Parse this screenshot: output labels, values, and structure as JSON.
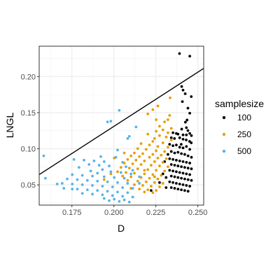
{
  "chart_data": {
    "type": "scatter",
    "xlabel": "D",
    "ylabel": "LNGL",
    "xlim": [
      0.1555,
      0.2535
    ],
    "ylim": [
      0.022,
      0.242
    ],
    "xticks": [
      0.175,
      0.2,
      0.225,
      0.25
    ],
    "xtick_labels": [
      "0.175",
      "0.200",
      "0.225",
      "0.250"
    ],
    "yticks": [
      0.05,
      0.1,
      0.15,
      0.2
    ],
    "ytick_labels": [
      "0.05",
      "0.10",
      "0.15",
      "0.20"
    ],
    "grid": true,
    "legend": {
      "title": "samplesize",
      "position": "right",
      "entries": [
        "100",
        "250",
        "500"
      ]
    },
    "reference_line": {
      "intercept": -0.169,
      "slope": 1.5
    },
    "series": [
      {
        "name": "100",
        "color": "#000000",
        "points": [
          [
            0.2452,
            0.2282
          ],
          [
            0.2391,
            0.2318
          ],
          [
            0.2404,
            0.1862
          ],
          [
            0.2412,
            0.1812
          ],
          [
            0.2425,
            0.1762
          ],
          [
            0.2461,
            0.1722
          ],
          [
            0.2408,
            0.1653
          ],
          [
            0.2441,
            0.1562
          ],
          [
            0.2452,
            0.1492
          ],
          [
            0.2436,
            0.1398
          ],
          [
            0.2426,
            0.1368
          ],
          [
            0.2432,
            0.1292
          ],
          [
            0.2404,
            0.1272
          ],
          [
            0.2352,
            0.1222
          ],
          [
            0.2372,
            0.1212
          ],
          [
            0.2382,
            0.1202
          ],
          [
            0.2412,
            0.1192
          ],
          [
            0.2432,
            0.1192
          ],
          [
            0.2452,
            0.1212
          ],
          [
            0.2462,
            0.1182
          ],
          [
            0.2342,
            0.1152
          ],
          [
            0.2361,
            0.1142
          ],
          [
            0.2392,
            0.1152
          ],
          [
            0.2412,
            0.1132
          ],
          [
            0.2431,
            0.1122
          ],
          [
            0.2451,
            0.1102
          ],
          [
            0.2461,
            0.1082
          ],
          [
            0.2332,
            0.1062
          ],
          [
            0.2352,
            0.1042
          ],
          [
            0.2372,
            0.1052
          ],
          [
            0.2392,
            0.1022
          ],
          [
            0.2412,
            0.1012
          ],
          [
            0.2432,
            0.1032
          ],
          [
            0.2452,
            0.0992
          ],
          [
            0.2342,
            0.0962
          ],
          [
            0.2362,
            0.0942
          ],
          [
            0.2382,
            0.0952
          ],
          [
            0.2402,
            0.0932
          ],
          [
            0.2422,
            0.0922
          ],
          [
            0.2442,
            0.0902
          ],
          [
            0.2462,
            0.0882
          ],
          [
            0.2332,
            0.0862
          ],
          [
            0.2352,
            0.0852
          ],
          [
            0.2372,
            0.0842
          ],
          [
            0.2392,
            0.0832
          ],
          [
            0.2412,
            0.0822
          ],
          [
            0.2432,
            0.0812
          ],
          [
            0.2452,
            0.0802
          ],
          [
            0.2342,
            0.0782
          ],
          [
            0.2362,
            0.0772
          ],
          [
            0.2382,
            0.0762
          ],
          [
            0.2402,
            0.0752
          ],
          [
            0.2422,
            0.0742
          ],
          [
            0.2442,
            0.0732
          ],
          [
            0.2462,
            0.0722
          ],
          [
            0.2332,
            0.0702
          ],
          [
            0.2352,
            0.0692
          ],
          [
            0.2372,
            0.0682
          ],
          [
            0.2392,
            0.0672
          ],
          [
            0.2412,
            0.0662
          ],
          [
            0.2432,
            0.0652
          ],
          [
            0.2452,
            0.0642
          ],
          [
            0.2342,
            0.0622
          ],
          [
            0.2362,
            0.0612
          ],
          [
            0.2382,
            0.0602
          ],
          [
            0.2402,
            0.0592
          ],
          [
            0.2422,
            0.0582
          ],
          [
            0.2442,
            0.0572
          ],
          [
            0.2462,
            0.0562
          ],
          [
            0.2332,
            0.0542
          ],
          [
            0.2352,
            0.0532
          ],
          [
            0.2372,
            0.0522
          ],
          [
            0.2392,
            0.0512
          ],
          [
            0.2412,
            0.0502
          ],
          [
            0.2432,
            0.0492
          ],
          [
            0.2452,
            0.0482
          ],
          [
            0.2342,
            0.0462
          ],
          [
            0.2362,
            0.0452
          ],
          [
            0.2382,
            0.0442
          ],
          [
            0.2402,
            0.0432
          ],
          [
            0.2422,
            0.0422
          ],
          [
            0.2442,
            0.0412
          ],
          [
            0.2222,
            0.0422
          ],
          [
            0.2272,
            0.0532
          ],
          [
            0.2292,
            0.0652
          ],
          [
            0.2311,
            0.0602
          ],
          [
            0.2322,
            0.0922
          ],
          [
            0.2302,
            0.0822
          ],
          [
            0.2401,
            0.1062
          ],
          [
            0.2441,
            0.1252
          ],
          [
            0.2311,
            0.0462
          ]
        ]
      },
      {
        "name": "250",
        "color": "#E69F00",
        "points": [
          [
            0.2335,
            0.1705
          ],
          [
            0.2262,
            0.1592
          ],
          [
            0.2232,
            0.1542
          ],
          [
            0.2202,
            0.1482
          ],
          [
            0.2252,
            0.1402
          ],
          [
            0.2332,
            0.1462
          ],
          [
            0.2322,
            0.1402
          ],
          [
            0.2302,
            0.1372
          ],
          [
            0.2272,
            0.1312
          ],
          [
            0.2342,
            0.1282
          ],
          [
            0.2292,
            0.1262
          ],
          [
            0.2252,
            0.1242
          ],
          [
            0.2322,
            0.1222
          ],
          [
            0.2202,
            0.1202
          ],
          [
            0.2272,
            0.1182
          ],
          [
            0.2312,
            0.1162
          ],
          [
            0.2242,
            0.1142
          ],
          [
            0.2342,
            0.1122
          ],
          [
            0.2232,
            0.1102
          ],
          [
            0.2292,
            0.1082
          ],
          [
            0.2162,
            0.1072
          ],
          [
            0.2212,
            0.1052
          ],
          [
            0.2262,
            0.1032
          ],
          [
            0.2322,
            0.1022
          ],
          [
            0.2142,
            0.1002
          ],
          [
            0.2192,
            0.0992
          ],
          [
            0.2252,
            0.0972
          ],
          [
            0.2302,
            0.0962
          ],
          [
            0.2122,
            0.0942
          ],
          [
            0.2172,
            0.0932
          ],
          [
            0.2232,
            0.0922
          ],
          [
            0.2282,
            0.0912
          ],
          [
            0.2102,
            0.0902
          ],
          [
            0.2152,
            0.0892
          ],
          [
            0.2212,
            0.0882
          ],
          [
            0.2262,
            0.0872
          ],
          [
            0.2312,
            0.0862
          ],
          [
            0.2082,
            0.0852
          ],
          [
            0.2132,
            0.0842
          ],
          [
            0.2182,
            0.0832
          ],
          [
            0.2242,
            0.0822
          ],
          [
            0.2292,
            0.0812
          ],
          [
            0.2062,
            0.0802
          ],
          [
            0.2112,
            0.0792
          ],
          [
            0.2162,
            0.0782
          ],
          [
            0.2222,
            0.0772
          ],
          [
            0.2272,
            0.0762
          ],
          [
            0.2322,
            0.0752
          ],
          [
            0.2042,
            0.0742
          ],
          [
            0.2092,
            0.0732
          ],
          [
            0.2142,
            0.0722
          ],
          [
            0.2202,
            0.0712
          ],
          [
            0.2252,
            0.0702
          ],
          [
            0.2302,
            0.0692
          ],
          [
            0.2022,
            0.0682
          ],
          [
            0.2072,
            0.0672
          ],
          [
            0.2122,
            0.0662
          ],
          [
            0.2182,
            0.0652
          ],
          [
            0.2232,
            0.0642
          ],
          [
            0.2282,
            0.0632
          ],
          [
            0.2052,
            0.0622
          ],
          [
            0.2102,
            0.0612
          ],
          [
            0.2162,
            0.0602
          ],
          [
            0.2212,
            0.0592
          ],
          [
            0.2262,
            0.0582
          ],
          [
            0.2082,
            0.0562
          ],
          [
            0.2142,
            0.0552
          ],
          [
            0.2192,
            0.0542
          ],
          [
            0.2242,
            0.0532
          ],
          [
            0.2292,
            0.0522
          ],
          [
            0.2122,
            0.0502
          ],
          [
            0.2172,
            0.0492
          ],
          [
            0.2222,
            0.0482
          ],
          [
            0.2272,
            0.0472
          ],
          [
            0.2102,
            0.0452
          ],
          [
            0.2152,
            0.0442
          ],
          [
            0.2202,
            0.0432
          ],
          [
            0.2252,
            0.0422
          ],
          [
            0.2182,
            0.0402
          ],
          [
            0.2232,
            0.0392
          ],
          [
            0.1942,
            0.0572
          ],
          [
            0.1982,
            0.0652
          ],
          [
            0.2002,
            0.0872
          ],
          [
            0.2062,
            0.0942
          ],
          [
            0.2182,
            0.0702
          ],
          [
            0.2242,
            0.0612
          ]
        ]
      },
      {
        "name": "500",
        "color": "#56B4E9",
        "points": [
          [
            0.2032,
            0.1532
          ],
          [
            0.1962,
            0.1372
          ],
          [
            0.1982,
            0.1382
          ],
          [
            0.2132,
            0.1302
          ],
          [
            0.2092,
            0.1172
          ],
          [
            0.2082,
            0.1142
          ],
          [
            0.2022,
            0.0982
          ],
          [
            0.1582,
            0.0902
          ],
          [
            0.1922,
            0.0892
          ],
          [
            0.2012,
            0.0882
          ],
          [
            0.1762,
            0.0852
          ],
          [
            0.1822,
            0.0842
          ],
          [
            0.1882,
            0.0832
          ],
          [
            0.1942,
            0.0822
          ],
          [
            0.2052,
            0.0812
          ],
          [
            0.1852,
            0.0782
          ],
          [
            0.1912,
            0.0772
          ],
          [
            0.1972,
            0.0762
          ],
          [
            0.2072,
            0.0752
          ],
          [
            0.1792,
            0.0742
          ],
          [
            0.1932,
            0.0712
          ],
          [
            0.2112,
            0.0702
          ],
          [
            0.1862,
            0.0692
          ],
          [
            0.1982,
            0.0682
          ],
          [
            0.2042,
            0.0672
          ],
          [
            0.1902,
            0.0662
          ],
          [
            0.2102,
            0.0652
          ],
          [
            0.1752,
            0.0642
          ],
          [
            0.1812,
            0.0632
          ],
          [
            0.1872,
            0.0622
          ],
          [
            0.1942,
            0.0612
          ],
          [
            0.2002,
            0.0602
          ],
          [
            0.2062,
            0.0592
          ],
          [
            0.1592,
            0.0592
          ],
          [
            0.1722,
            0.0582
          ],
          [
            0.1782,
            0.0572
          ],
          [
            0.1842,
            0.0562
          ],
          [
            0.1902,
            0.0552
          ],
          [
            0.1962,
            0.0542
          ],
          [
            0.2022,
            0.0532
          ],
          [
            0.2082,
            0.0522
          ],
          [
            0.1692,
            0.0522
          ],
          [
            0.1752,
            0.0512
          ],
          [
            0.1812,
            0.0502
          ],
          [
            0.1872,
            0.0492
          ],
          [
            0.1932,
            0.0482
          ],
          [
            0.1992,
            0.0472
          ],
          [
            0.2052,
            0.0462
          ],
          [
            0.2112,
            0.0452
          ],
          [
            0.1782,
            0.0442
          ],
          [
            0.1842,
            0.0432
          ],
          [
            0.1902,
            0.0422
          ],
          [
            0.1962,
            0.0412
          ],
          [
            0.2022,
            0.0402
          ],
          [
            0.2082,
            0.0392
          ],
          [
            0.1812,
            0.0382
          ],
          [
            0.1872,
            0.0372
          ],
          [
            0.1932,
            0.0362
          ],
          [
            0.1992,
            0.0352
          ],
          [
            0.2052,
            0.0342
          ],
          [
            0.2112,
            0.0332
          ],
          [
            0.1942,
            0.0312
          ],
          [
            0.2002,
            0.0302
          ],
          [
            0.2062,
            0.0292
          ],
          [
            0.1972,
            0.0282
          ],
          [
            0.2032,
            0.0272
          ],
          [
            0.2092,
            0.0262
          ],
          [
            0.1702,
            0.0452
          ],
          [
            0.1752,
            0.0442
          ],
          [
            0.1662,
            0.0512
          ],
          [
            0.2152,
            0.0612
          ],
          [
            0.2152,
            0.0522
          ]
        ]
      }
    ]
  }
}
